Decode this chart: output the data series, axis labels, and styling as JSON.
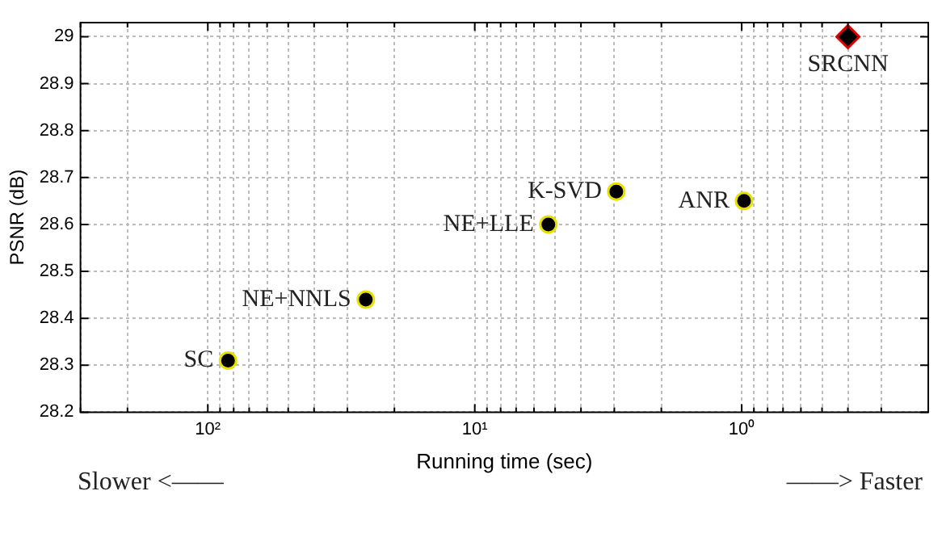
{
  "chart_data": {
    "type": "scatter",
    "xlabel": "Running time (sec)",
    "ylabel": "PSNR (dB)",
    "log": "x",
    "grid": true,
    "legend": false,
    "xlim": [
      300,
      0.2
    ],
    "ylim": [
      28.2,
      29.03
    ],
    "xticks": [
      {
        "value": 300,
        "label": null
      },
      {
        "value": 200,
        "label": null
      },
      {
        "value": 100,
        "label": "10²"
      },
      {
        "value": 90,
        "label": null
      },
      {
        "value": 80,
        "label": null
      },
      {
        "value": 70,
        "label": null
      },
      {
        "value": 60,
        "label": null
      },
      {
        "value": 50,
        "label": null
      },
      {
        "value": 40,
        "label": null
      },
      {
        "value": 30,
        "label": null
      },
      {
        "value": 20,
        "label": null
      },
      {
        "value": 10,
        "label": "10¹"
      },
      {
        "value": 9,
        "label": null
      },
      {
        "value": 8,
        "label": null
      },
      {
        "value": 7,
        "label": null
      },
      {
        "value": 6,
        "label": null
      },
      {
        "value": 5,
        "label": null
      },
      {
        "value": 4,
        "label": null
      },
      {
        "value": 3,
        "label": null
      },
      {
        "value": 2,
        "label": null
      },
      {
        "value": 1,
        "label": "10⁰"
      },
      {
        "value": 0.9,
        "label": null
      },
      {
        "value": 0.8,
        "label": null
      },
      {
        "value": 0.7,
        "label": null
      },
      {
        "value": 0.6,
        "label": null
      },
      {
        "value": 0.5,
        "label": null
      },
      {
        "value": 0.4,
        "label": null
      },
      {
        "value": 0.3,
        "label": null
      },
      {
        "value": 0.2,
        "label": null
      }
    ],
    "yticks": [
      28.2,
      28.3,
      28.4,
      28.5,
      28.6,
      28.7,
      28.8,
      28.9,
      29
    ],
    "series": [
      {
        "color": "#000000",
        "marker": "circle",
        "x": [
          84,
          25.6,
          5.3,
          2.95,
          0.98
        ],
        "values": [
          28.31,
          28.44,
          28.6,
          28.67,
          28.65
        ]
      },
      {
        "color": "#000000",
        "marker": "diamond",
        "x": [
          0.4
        ],
        "values": [
          29.0
        ]
      }
    ],
    "annotations": [
      {
        "text": "SC",
        "x": 84,
        "y": 28.31
      },
      {
        "text": "NE+NNLS",
        "x": 25.6,
        "y": 28.44
      },
      {
        "text": "NE+LLE",
        "x": 5.3,
        "y": 28.6
      },
      {
        "text": "K-SVD",
        "x": 2.95,
        "y": 28.67
      },
      {
        "text": "ANR",
        "x": 0.98,
        "y": 28.65
      },
      {
        "text": "SRCNN",
        "x": 0.4,
        "y": 29.0
      },
      "Slower <——",
      "——> Faster"
    ]
  }
}
